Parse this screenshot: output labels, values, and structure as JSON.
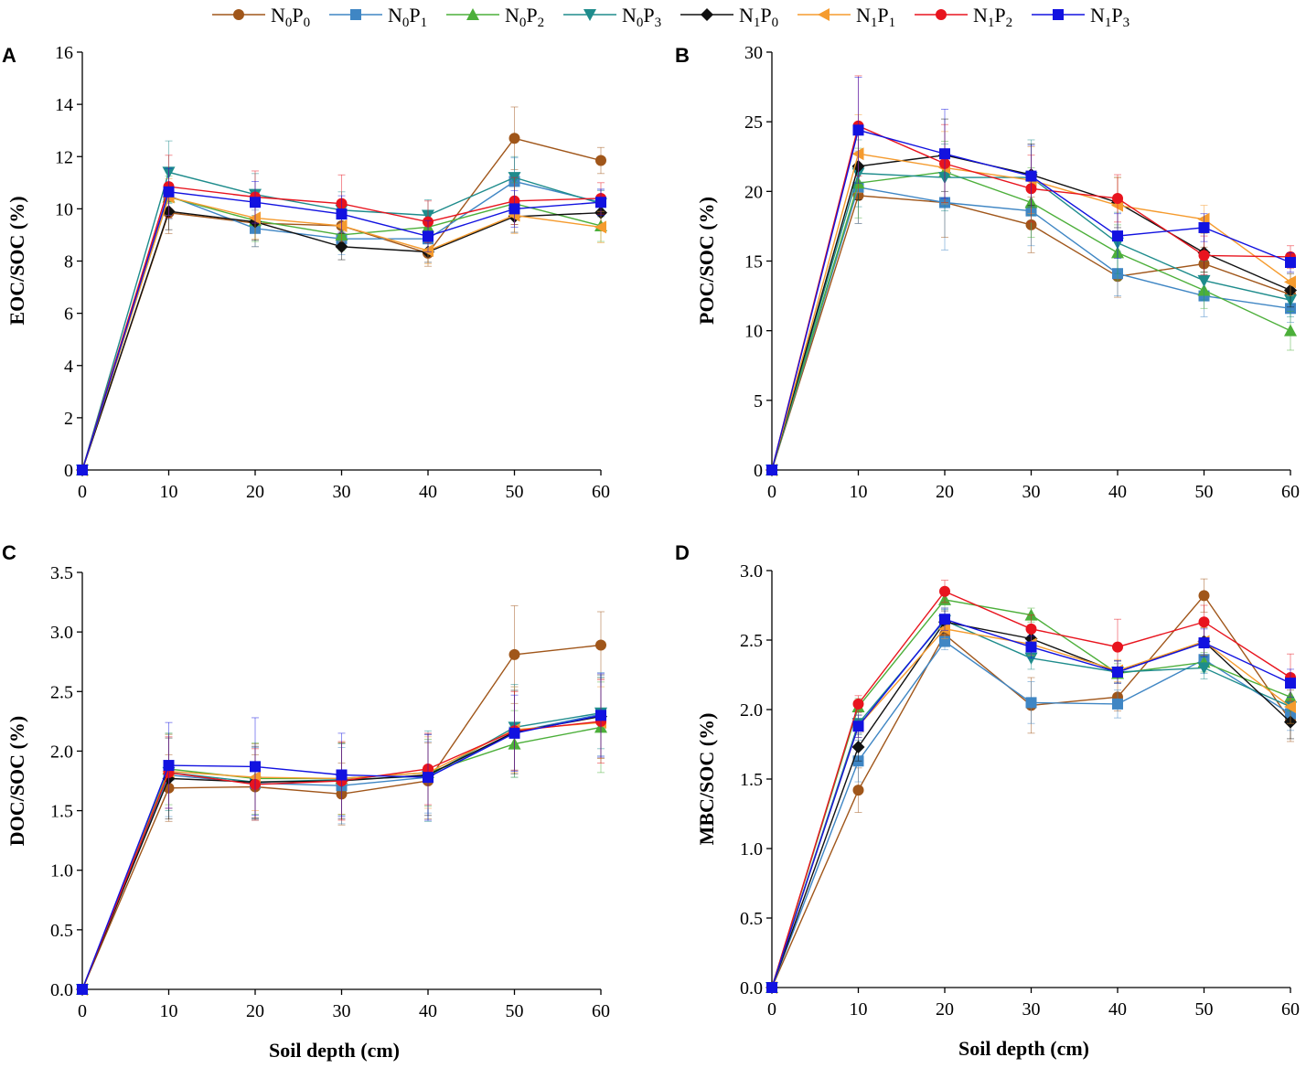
{
  "legend": [
    {
      "key": "N0P0",
      "main1": "N",
      "sub1": "0",
      "main2": "P",
      "sub2": "0",
      "color": "#A0561A",
      "marker": "circle"
    },
    {
      "key": "N0P1",
      "main1": "N",
      "sub1": "0",
      "main2": "P",
      "sub2": "1",
      "color": "#3F86C4",
      "marker": "square"
    },
    {
      "key": "N0P2",
      "main1": "N",
      "sub1": "0",
      "main2": "P",
      "sub2": "2",
      "color": "#4CAF3A",
      "marker": "triangle-up"
    },
    {
      "key": "N0P3",
      "main1": "N",
      "sub1": "0",
      "main2": "P",
      "sub2": "3",
      "color": "#1E8C8C",
      "marker": "triangle-down"
    },
    {
      "key": "N1P0",
      "main1": "N",
      "sub1": "1",
      "main2": "P",
      "sub2": "0",
      "color": "#111111",
      "marker": "diamond"
    },
    {
      "key": "N1P1",
      "main1": "N",
      "sub1": "1",
      "main2": "P",
      "sub2": "1",
      "color": "#F59B2E",
      "marker": "triangle-left"
    },
    {
      "key": "N1P2",
      "main1": "N",
      "sub1": "1",
      "main2": "P",
      "sub2": "2",
      "color": "#E8141E",
      "marker": "circle"
    },
    {
      "key": "N1P3",
      "main1": "N",
      "sub1": "1",
      "main2": "P",
      "sub2": "3",
      "color": "#1212E0",
      "marker": "square"
    }
  ],
  "chart_data": [
    {
      "panel": "A",
      "type": "line",
      "ylabel": "EOC/SOC (%)",
      "xlabel": "",
      "x": [
        0,
        10,
        20,
        30,
        40,
        50,
        60
      ],
      "xlim": [
        0,
        60
      ],
      "ylim": [
        0,
        16
      ],
      "yticks": [
        0,
        2,
        4,
        6,
        8,
        10,
        12,
        14,
        16
      ],
      "ytick_labels": [
        "0",
        "2",
        "4",
        "6",
        "8",
        "10",
        "12",
        "14",
        "16"
      ],
      "xtick_labels": [
        "0",
        "10",
        "20",
        "30",
        "40",
        "50",
        "60"
      ],
      "series": [
        {
          "name": "N0P0",
          "values": [
            0,
            9.85,
            9.45,
            9.35,
            8.3,
            12.7,
            11.85
          ],
          "errors": [
            0,
            0.8,
            0.9,
            0.8,
            0.5,
            1.2,
            0.5
          ]
        },
        {
          "name": "N0P1",
          "values": [
            0,
            10.5,
            9.25,
            8.85,
            8.85,
            11.05,
            10.25
          ],
          "errors": [
            0,
            0.9,
            0.7,
            0.6,
            0.5,
            0.9,
            0.5
          ]
        },
        {
          "name": "N0P2",
          "values": [
            0,
            10.45,
            9.55,
            9.0,
            9.3,
            10.2,
            9.35
          ],
          "errors": [
            0,
            0.8,
            0.8,
            0.6,
            0.5,
            0.8,
            0.6
          ]
        },
        {
          "name": "N0P3",
          "values": [
            0,
            11.4,
            10.55,
            9.95,
            9.75,
            11.2,
            10.2
          ],
          "errors": [
            0,
            1.2,
            0.8,
            0.7,
            0.6,
            0.8,
            0.5
          ]
        },
        {
          "name": "N1P0",
          "values": [
            0,
            9.9,
            9.5,
            8.55,
            8.35,
            9.7,
            9.85
          ],
          "errors": [
            0,
            0.7,
            0.7,
            0.5,
            0.4,
            0.6,
            0.5
          ]
        },
        {
          "name": "N1P1",
          "values": [
            0,
            10.45,
            9.65,
            9.35,
            8.4,
            9.75,
            9.3
          ],
          "errors": [
            0,
            0.7,
            0.8,
            0.6,
            0.5,
            0.7,
            0.6
          ]
        },
        {
          "name": "N1P2",
          "values": [
            0,
            10.85,
            10.45,
            10.2,
            9.5,
            10.3,
            10.4
          ],
          "errors": [
            0,
            1.2,
            1.0,
            1.1,
            0.8,
            0.9,
            0.6
          ]
        },
        {
          "name": "N1P3",
          "values": [
            0,
            10.65,
            10.25,
            9.8,
            8.95,
            10.0,
            10.25
          ],
          "errors": [
            0,
            0.9,
            0.8,
            0.7,
            0.6,
            0.7,
            0.5
          ]
        }
      ]
    },
    {
      "panel": "B",
      "type": "line",
      "ylabel": "POC/SOC (%)",
      "xlabel": "",
      "x": [
        0,
        10,
        20,
        30,
        40,
        50,
        60
      ],
      "xlim": [
        0,
        60
      ],
      "ylim": [
        0,
        30
      ],
      "yticks": [
        0,
        5,
        10,
        15,
        20,
        25,
        30
      ],
      "ytick_labels": [
        "0",
        "5",
        "10",
        "15",
        "20",
        "25",
        "30"
      ],
      "xtick_labels": [
        "0",
        "10",
        "20",
        "30",
        "40",
        "50",
        "60"
      ],
      "series": [
        {
          "name": "N0P0",
          "values": [
            0,
            19.7,
            19.2,
            17.6,
            13.9,
            14.8,
            12.6
          ],
          "errors": [
            0,
            2.0,
            2.5,
            2.0,
            1.5,
            1.2,
            1.0
          ]
        },
        {
          "name": "N0P1",
          "values": [
            0,
            20.3,
            19.2,
            18.6,
            14.1,
            12.5,
            11.6
          ],
          "errors": [
            0,
            2.6,
            3.4,
            2.5,
            1.6,
            1.5,
            1.0
          ]
        },
        {
          "name": "N0P2",
          "values": [
            0,
            20.6,
            21.4,
            19.2,
            15.6,
            12.9,
            10.0
          ],
          "errors": [
            0,
            2.5,
            2.2,
            2.5,
            2.0,
            1.3,
            1.4
          ]
        },
        {
          "name": "N0P3",
          "values": [
            0,
            21.3,
            21.0,
            21.0,
            16.3,
            13.6,
            12.2
          ],
          "errors": [
            0,
            2.4,
            2.4,
            2.7,
            2.2,
            1.4,
            1.2
          ]
        },
        {
          "name": "N1P0",
          "values": [
            0,
            21.8,
            22.6,
            21.2,
            19.2,
            15.6,
            12.9
          ],
          "errors": [
            0,
            2.4,
            2.6,
            2.2,
            1.8,
            1.4,
            1.2
          ]
        },
        {
          "name": "N1P1",
          "values": [
            0,
            22.7,
            21.7,
            20.8,
            19.0,
            18.0,
            13.5
          ],
          "errors": [
            0,
            2.8,
            2.6,
            2.4,
            2.0,
            1.0,
            1.0
          ]
        },
        {
          "name": "N1P2",
          "values": [
            0,
            24.7,
            22.0,
            20.2,
            19.5,
            15.4,
            15.3
          ],
          "errors": [
            0,
            3.6,
            2.8,
            2.4,
            1.7,
            1.4,
            0.8
          ]
        },
        {
          "name": "N1P3",
          "values": [
            0,
            24.4,
            22.7,
            21.1,
            16.8,
            17.4,
            14.9
          ],
          "errors": [
            0,
            3.8,
            3.2,
            2.2,
            1.6,
            1.0,
            0.7
          ]
        }
      ]
    },
    {
      "panel": "C",
      "type": "line",
      "ylabel": "DOC/SOC (%)",
      "xlabel": "Soil depth (cm)",
      "x": [
        0,
        10,
        20,
        30,
        40,
        50,
        60
      ],
      "xlim": [
        0,
        60
      ],
      "ylim": [
        0,
        3.5
      ],
      "yticks": [
        0,
        0.5,
        1.0,
        1.5,
        2.0,
        2.5,
        3.0,
        3.5
      ],
      "ytick_labels": [
        "0.0",
        "0.5",
        "1.0",
        "1.5",
        "2.0",
        "2.5",
        "3.0",
        "3.5"
      ],
      "xtick_labels": [
        "0",
        "10",
        "20",
        "30",
        "40",
        "50",
        "60"
      ],
      "series": [
        {
          "name": "N0P0",
          "values": [
            0,
            1.69,
            1.7,
            1.64,
            1.75,
            2.81,
            2.89
          ],
          "errors": [
            0,
            0.28,
            0.27,
            0.26,
            0.32,
            0.41,
            0.28
          ]
        },
        {
          "name": "N0P1",
          "values": [
            0,
            1.8,
            1.73,
            1.71,
            1.78,
            2.16,
            2.31
          ],
          "errors": [
            0,
            0.35,
            0.3,
            0.32,
            0.3,
            0.38,
            0.35
          ]
        },
        {
          "name": "N0P2",
          "values": [
            0,
            1.85,
            1.77,
            1.77,
            1.82,
            2.06,
            2.2
          ],
          "errors": [
            0,
            0.3,
            0.3,
            0.3,
            0.28,
            0.28,
            0.38
          ]
        },
        {
          "name": "N0P3",
          "values": [
            0,
            1.82,
            1.74,
            1.76,
            1.79,
            2.2,
            2.32
          ],
          "errors": [
            0,
            0.32,
            0.32,
            0.3,
            0.38,
            0.36,
            0.3
          ]
        },
        {
          "name": "N1P0",
          "values": [
            0,
            1.77,
            1.74,
            1.75,
            1.8,
            2.16,
            2.29
          ],
          "errors": [
            0,
            0.34,
            0.3,
            0.32,
            0.34,
            0.35,
            0.35
          ]
        },
        {
          "name": "N1P1",
          "values": [
            0,
            1.83,
            1.78,
            1.77,
            1.82,
            2.18,
            2.24
          ],
          "errors": [
            0,
            0.31,
            0.28,
            0.3,
            0.3,
            0.36,
            0.3
          ]
        },
        {
          "name": "N1P2",
          "values": [
            0,
            1.82,
            1.72,
            1.75,
            1.85,
            2.17,
            2.25
          ],
          "errors": [
            0,
            0.3,
            0.3,
            0.33,
            0.3,
            0.33,
            0.35
          ]
        },
        {
          "name": "N1P3",
          "values": [
            0,
            1.88,
            1.87,
            1.8,
            1.78,
            2.15,
            2.3
          ],
          "errors": [
            0,
            0.36,
            0.41,
            0.35,
            0.36,
            0.32,
            0.35
          ]
        }
      ]
    },
    {
      "panel": "D",
      "type": "line",
      "ylabel": "MBC/SOC (%)",
      "xlabel": "Soil depth (cm)",
      "x": [
        0,
        10,
        20,
        30,
        40,
        50,
        60
      ],
      "xlim": [
        0,
        60
      ],
      "ylim": [
        0,
        3.0
      ],
      "yticks": [
        0,
        0.5,
        1.0,
        1.5,
        2.0,
        2.5,
        3.0
      ],
      "ytick_labels": [
        "0.0",
        "0.5",
        "1.0",
        "1.5",
        "2.0",
        "2.5",
        "3.0"
      ],
      "xtick_labels": [
        "0",
        "10",
        "20",
        "30",
        "40",
        "50",
        "60"
      ],
      "series": [
        {
          "name": "N0P0",
          "values": [
            0,
            1.42,
            2.54,
            2.03,
            2.09,
            2.82,
            1.92
          ],
          "errors": [
            0,
            0.16,
            0.06,
            0.2,
            0.1,
            0.12,
            0.15
          ]
        },
        {
          "name": "N0P1",
          "values": [
            0,
            1.63,
            2.49,
            2.05,
            2.04,
            2.36,
            1.97
          ],
          "errors": [
            0,
            0.15,
            0.06,
            0.15,
            0.1,
            0.1,
            0.12
          ]
        },
        {
          "name": "N0P2",
          "values": [
            0,
            2.02,
            2.79,
            2.68,
            2.26,
            2.34,
            2.09
          ],
          "errors": [
            0,
            0.06,
            0.06,
            0.05,
            0.07,
            0.07,
            0.1
          ]
        },
        {
          "name": "N0P3",
          "values": [
            0,
            1.9,
            2.64,
            2.37,
            2.27,
            2.3,
            2.02
          ],
          "errors": [
            0,
            0.08,
            0.08,
            0.08,
            0.08,
            0.08,
            0.12
          ]
        },
        {
          "name": "N1P0",
          "values": [
            0,
            1.73,
            2.63,
            2.51,
            2.27,
            2.49,
            1.91
          ],
          "errors": [
            0,
            0.1,
            0.08,
            0.08,
            0.08,
            0.1,
            0.12
          ]
        },
        {
          "name": "N1P1",
          "values": [
            0,
            1.88,
            2.58,
            2.47,
            2.28,
            2.49,
            2.02
          ],
          "errors": [
            0,
            0.08,
            0.07,
            0.08,
            0.08,
            0.1,
            0.12
          ]
        },
        {
          "name": "N1P2",
          "values": [
            0,
            2.04,
            2.85,
            2.58,
            2.45,
            2.63,
            2.23
          ],
          "errors": [
            0,
            0.06,
            0.08,
            0.1,
            0.2,
            0.12,
            0.17
          ]
        },
        {
          "name": "N1P3",
          "values": [
            0,
            1.88,
            2.65,
            2.45,
            2.27,
            2.48,
            2.19
          ],
          "errors": [
            0,
            0.08,
            0.08,
            0.08,
            0.08,
            0.1,
            0.1
          ]
        }
      ]
    }
  ]
}
